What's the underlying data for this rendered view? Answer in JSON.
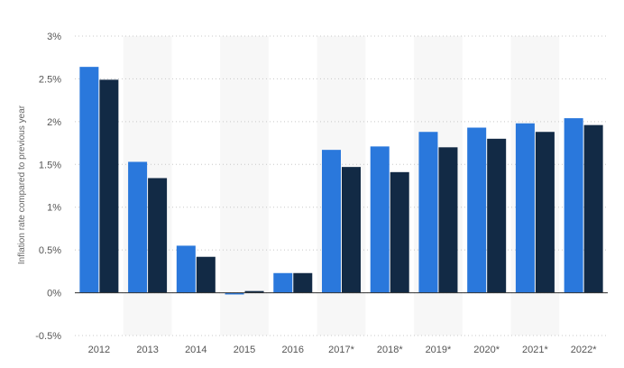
{
  "chart_data": {
    "type": "bar",
    "title": "",
    "xlabel": "",
    "ylabel": "Inflation rate compared to previous year",
    "categories": [
      "2012",
      "2013",
      "2014",
      "2015",
      "2016",
      "2017*",
      "2018*",
      "2019*",
      "2020*",
      "2021*",
      "2022*"
    ],
    "series": [
      {
        "color": "#2a78dc",
        "values": [
          2.64,
          1.53,
          0.55,
          -0.02,
          0.23,
          1.67,
          1.71,
          1.88,
          1.93,
          1.98,
          2.04
        ]
      },
      {
        "color": "#122a45",
        "values": [
          2.49,
          1.34,
          0.42,
          0.02,
          0.23,
          1.47,
          1.41,
          1.7,
          1.8,
          1.88,
          1.96
        ]
      }
    ],
    "ylim": [
      -0.5,
      3
    ],
    "yticks": [
      3,
      2.5,
      2,
      1.5,
      1,
      0.5,
      0,
      -0.5
    ],
    "ytick_labels": [
      "3%",
      "2.5%",
      "2%",
      "1.5%",
      "1%",
      "0.5%",
      "0%",
      "-0.5%"
    ],
    "grid": true,
    "legend": "none"
  }
}
